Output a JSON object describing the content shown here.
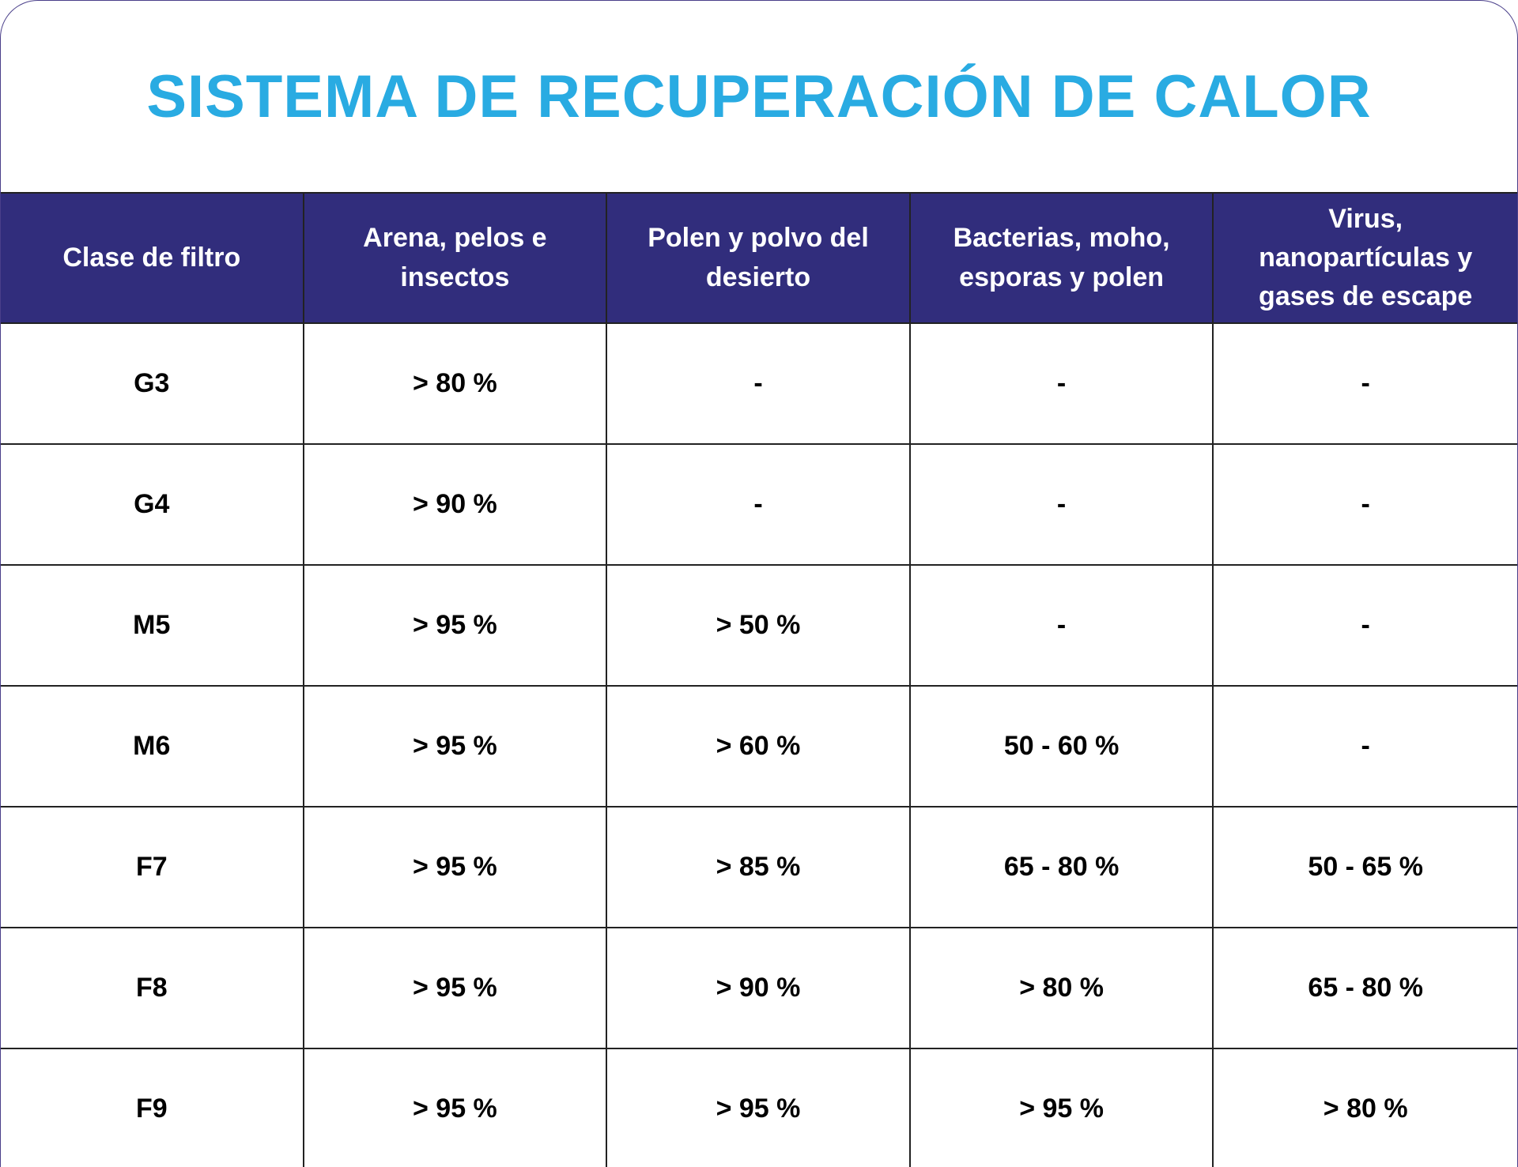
{
  "header": {
    "title": "SISTEMA DE RECUPERACIÓN DE CALOR"
  },
  "table": {
    "columns": [
      "Clase de filtro",
      "Arena, pelos e insectos",
      "Polen y polvo del desierto",
      "Bacterias, moho, esporas y polen",
      "Virus, nanopartículas y gases de escape"
    ],
    "rows": [
      [
        "G3",
        "> 80 %",
        "-",
        "-",
        "-"
      ],
      [
        "G4",
        "> 90 %",
        "-",
        "-",
        "-"
      ],
      [
        "M5",
        "> 95 %",
        "> 50 %",
        "-",
        "-"
      ],
      [
        "M6",
        "> 95 %",
        "> 60 %",
        "50 - 60 %",
        "-"
      ],
      [
        "F7",
        "> 95 %",
        "> 85 %",
        "65 - 80 %",
        "50 - 65 %"
      ],
      [
        "F8",
        "> 95 %",
        "> 90 %",
        "> 80 %",
        "65 - 80 %"
      ],
      [
        "F9",
        "> 95 %",
        "> 95 %",
        "> 95 %",
        "> 80 %"
      ]
    ]
  }
}
